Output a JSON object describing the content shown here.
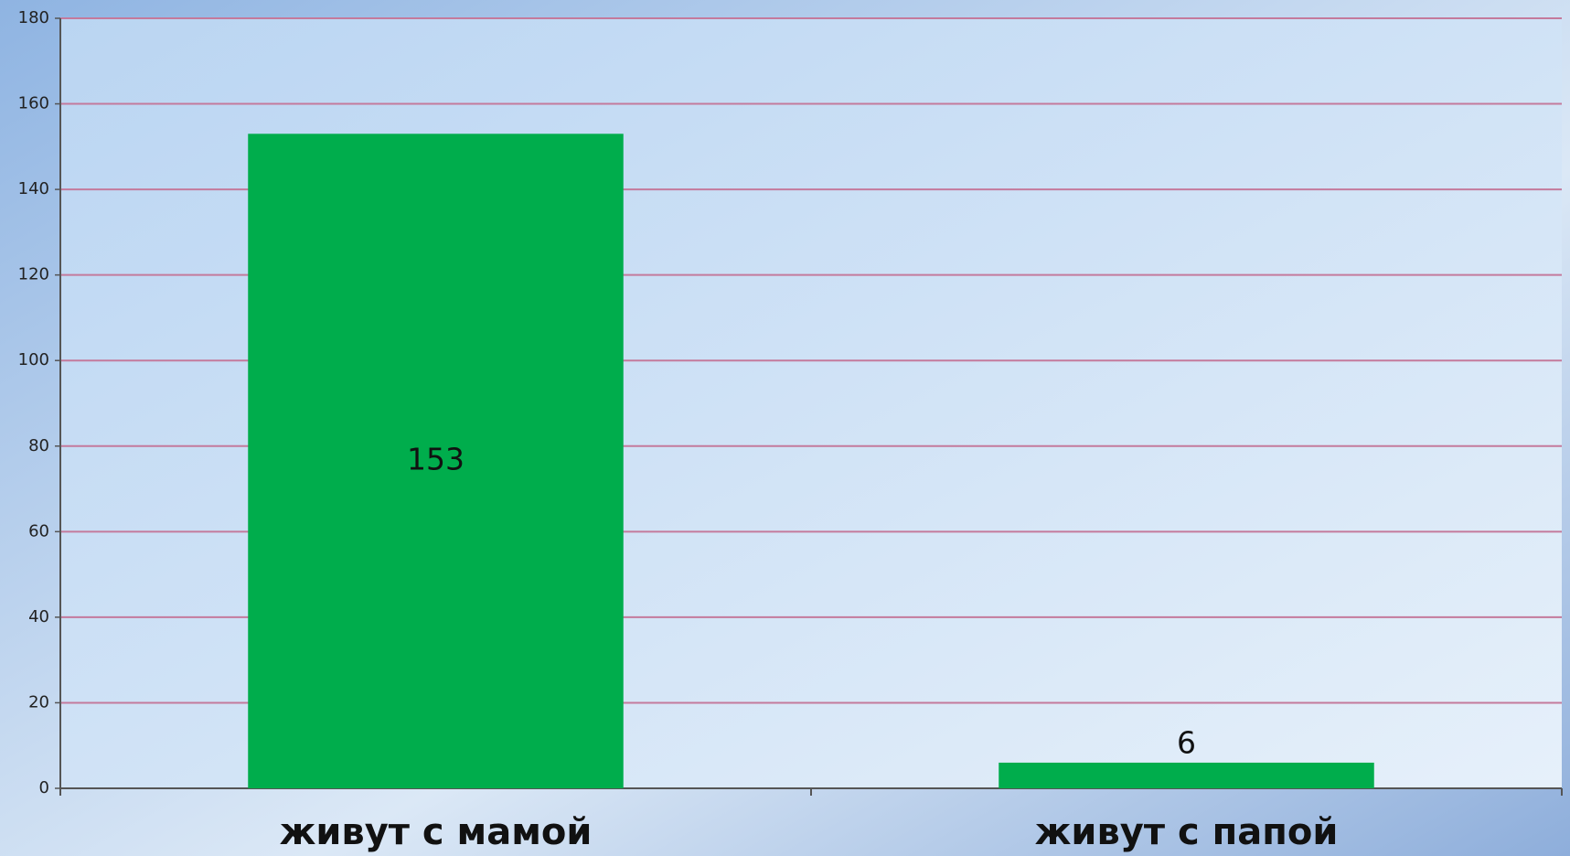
{
  "chart_data": {
    "type": "bar",
    "categories": [
      "живут с мамой",
      "живут с папой"
    ],
    "values": [
      153,
      6
    ],
    "color": "#00ad4c",
    "ylim": [
      0,
      180
    ],
    "yticks": [
      0,
      20,
      40,
      60,
      80,
      100,
      120,
      140,
      160,
      180
    ],
    "grid": true
  }
}
